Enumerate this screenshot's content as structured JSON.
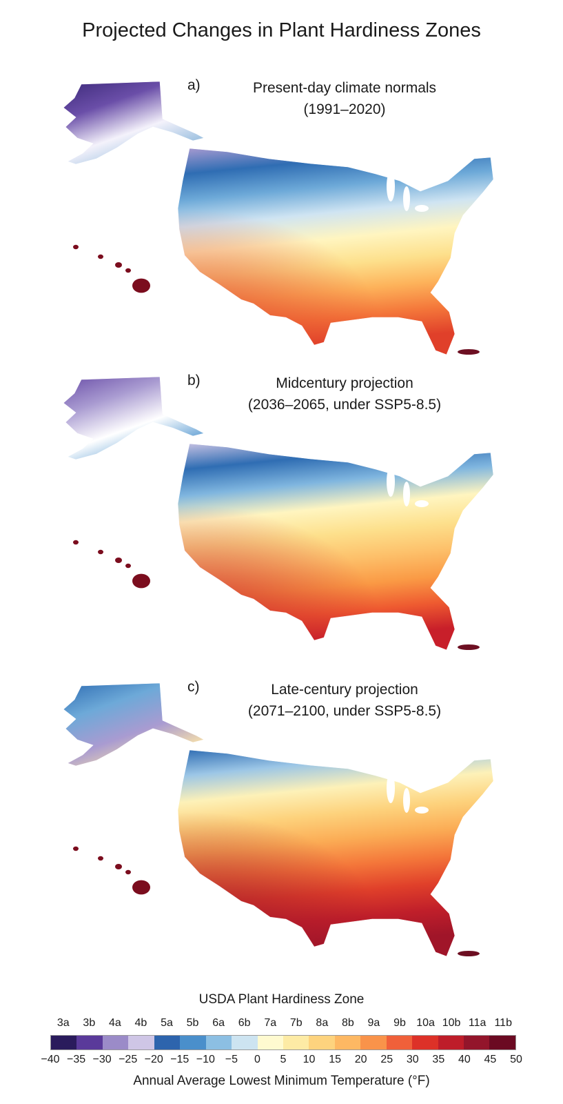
{
  "title": "Projected Changes in Plant Hardiness Zones",
  "panels": [
    {
      "letter": "a)",
      "line1": "Present-day climate normals",
      "line2": "(1991–2020)",
      "regions": {
        "ak": [
          "#3d2a7a",
          "#6a4ea8",
          "#f4f2fb",
          "#8fb9dc"
        ],
        "conus": [
          "#a99bd1",
          "#2f6db3",
          "#6da9d8",
          "#cfe4f2",
          "#fff5c0",
          "#fde08c",
          "#fdb25a",
          "#f4773a",
          "#e0402a"
        ],
        "hi": "#7b0d1e",
        "pr": "#6d0f22"
      }
    },
    {
      "letter": "b)",
      "line1": "Midcentury projection",
      "line2": "(2036–2065, under SSP5-8.5)",
      "regions": {
        "ak": [
          "#6a4ea8",
          "#a99bd1",
          "#ffffff",
          "#5a9bd2"
        ],
        "conus": [
          "#c8c2e3",
          "#2f6db3",
          "#80b6df",
          "#fff5c0",
          "#fde08c",
          "#fdc06a",
          "#fa9a45",
          "#ee5a30",
          "#c81f2a"
        ],
        "hi": "#7b0d1e",
        "pr": "#6d0f22"
      }
    },
    {
      "letter": "c)",
      "line1": "Late-century projection",
      "line2": "(2071–2100, under SSP5-8.5)",
      "regions": {
        "ak": [
          "#2f6db3",
          "#6da9d8",
          "#a99bd1",
          "#ffe7a6"
        ],
        "conus": [
          "#2f6db3",
          "#9cc6e6",
          "#fdf1b8",
          "#fdd27c",
          "#fbac55",
          "#f4773a",
          "#e0402a",
          "#c01f2a",
          "#a01529"
        ],
        "hi": "#7b0d1e",
        "pr": "#6d0f22"
      }
    }
  ],
  "legend": {
    "title": "USDA Plant Hardiness Zone",
    "zones": [
      "3a",
      "3b",
      "4a",
      "4b",
      "5a",
      "5b",
      "6a",
      "6b",
      "7a",
      "7b",
      "8a",
      "8b",
      "9a",
      "9b",
      "10a",
      "10b",
      "11a",
      "11b"
    ],
    "colors": [
      "#2a1b5c",
      "#5a3a9a",
      "#9b8bc8",
      "#cfc6e6",
      "#2d64ad",
      "#4a8fcb",
      "#8cbfe3",
      "#cde4f1",
      "#fffad0",
      "#fdeba5",
      "#fdd37e",
      "#fdb863",
      "#f9934a",
      "#f0603a",
      "#dd3128",
      "#be1d2a",
      "#93152b",
      "#6b0a22"
    ],
    "temps": [
      "−40",
      "−35",
      "−30",
      "−25",
      "−20",
      "−15",
      "−10",
      "−5",
      "0",
      "5",
      "10",
      "15",
      "20",
      "25",
      "30",
      "35",
      "40",
      "45",
      "50"
    ],
    "axis_label": "Annual Average Lowest Minimum Temperature (°F)"
  }
}
